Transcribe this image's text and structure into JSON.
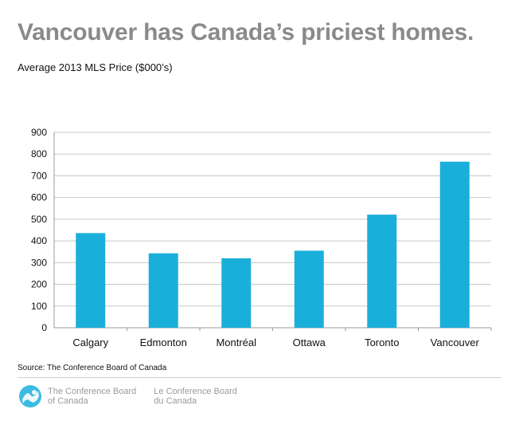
{
  "title": "Vancouver has Canada’s priciest homes.",
  "subtitle": "Average 2013 MLS Price ($000’s)",
  "source": "Source: The Conference Board of Canada",
  "footer": {
    "org_en": [
      "The Conference Board",
      "of Canada"
    ],
    "org_fr": [
      "Le Conference Board",
      "du Canada"
    ]
  },
  "colors": {
    "bar": "#1aafdb",
    "grid": "#c8c8c8",
    "title": "#8a8a8a"
  },
  "chart_data": {
    "type": "bar",
    "title": "",
    "xlabel": "",
    "ylabel": "",
    "categories": [
      "Calgary",
      "Edmonton",
      "Montréal",
      "Ottawa",
      "Toronto",
      "Vancouver"
    ],
    "values": [
      436,
      343,
      320,
      355,
      521,
      765
    ],
    "ylim": [
      0,
      900
    ],
    "yticks": [
      0,
      100,
      200,
      300,
      400,
      500,
      600,
      700,
      800,
      900
    ],
    "grid": true,
    "legend": "none"
  }
}
